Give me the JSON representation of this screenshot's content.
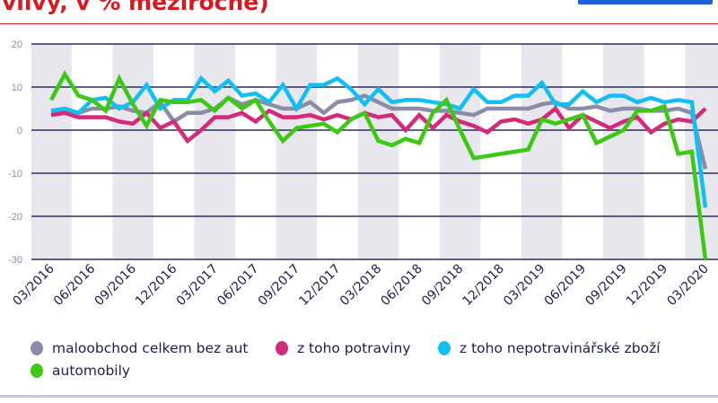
{
  "title": "vlivy, v % meziročně)",
  "colors": {
    "title": "#d71920",
    "grid": "#2b2a5c",
    "band": "#e8e7ee"
  },
  "chart_data": {
    "type": "line",
    "title": "",
    "xlabel": "",
    "ylabel": "",
    "ylim": [
      -30,
      20
    ],
    "yticks": [
      20,
      10,
      0,
      -10,
      -20,
      -30
    ],
    "grid": true,
    "legend_position": "bottom",
    "x_start": "03/2016",
    "x_end": "03/2020",
    "x_tick_labels": [
      "03/2016",
      "06/2016",
      "09/2016",
      "12/2016",
      "03/2017",
      "06/2017",
      "09/2017",
      "12/2017",
      "03/2018",
      "06/2018",
      "09/2018",
      "12/2018",
      "03/2019",
      "06/2019",
      "09/2019",
      "12/2019",
      "03/2020"
    ],
    "series": [
      {
        "name": "maloobchod celkem bez aut",
        "color": "#8a8ca8",
        "values": [
          4,
          4.5,
          4,
          5,
          5,
          5.5,
          4.5,
          4,
          6.5,
          2,
          4,
          4,
          5,
          7.5,
          6,
          7,
          6,
          5,
          5,
          6.5,
          4,
          6.5,
          7,
          8,
          6.5,
          5,
          5,
          5,
          4.5,
          4.5,
          4,
          3.5,
          5,
          5,
          5,
          5,
          6,
          6.5,
          5,
          5,
          5.5,
          4.5,
          5,
          5,
          4.5,
          4.5,
          5,
          4,
          -9
        ]
      },
      {
        "name": "z toho potraviny",
        "color": "#d42a7a",
        "values": [
          3.5,
          4,
          3,
          3,
          3,
          2,
          1.5,
          4,
          0.5,
          2,
          -2.5,
          0,
          3,
          3,
          4,
          2,
          4.5,
          3,
          3,
          3.5,
          2.5,
          3.5,
          2.5,
          4,
          3,
          3.5,
          0,
          3.5,
          0.5,
          3.5,
          2,
          1,
          -0.5,
          2,
          2.5,
          1.5,
          2.5,
          5,
          0.5,
          3.5,
          2,
          0.5,
          2,
          3,
          -0.5,
          1.5,
          2.5,
          2,
          5
        ]
      },
      {
        "name": "z toho nepotravinářské zboží",
        "color": "#12bff5",
        "values": [
          4.5,
          5,
          4,
          7,
          7.5,
          5,
          6.5,
          10.5,
          5,
          7,
          7,
          12,
          9,
          11.5,
          8,
          8.5,
          6.5,
          10.5,
          5,
          10.5,
          10.5,
          12,
          9.5,
          6,
          9.5,
          6.5,
          7,
          7,
          6.5,
          6,
          5,
          9.5,
          6.5,
          6.5,
          8,
          8,
          11,
          6,
          6,
          9,
          6.5,
          8,
          8,
          6.5,
          7.5,
          6.5,
          7,
          6.5,
          -18
        ]
      },
      {
        "name": "automobily",
        "color": "#3cc914",
        "values": [
          7,
          13,
          8,
          7,
          4.5,
          12,
          6,
          1,
          7,
          6.5,
          6.5,
          7,
          4.5,
          7.5,
          5,
          7,
          2,
          -2.5,
          0.5,
          1,
          1.5,
          -0.5,
          2.5,
          4,
          -2.5,
          -3.5,
          -2,
          -3,
          4,
          7,
          0,
          -6.5,
          -6,
          -5.5,
          -5,
          -4.5,
          2.5,
          1.5,
          2.5,
          3.5,
          -3,
          -1.5,
          0,
          4.5,
          4.5,
          5.5,
          -5.5,
          -5,
          -30
        ]
      }
    ]
  }
}
